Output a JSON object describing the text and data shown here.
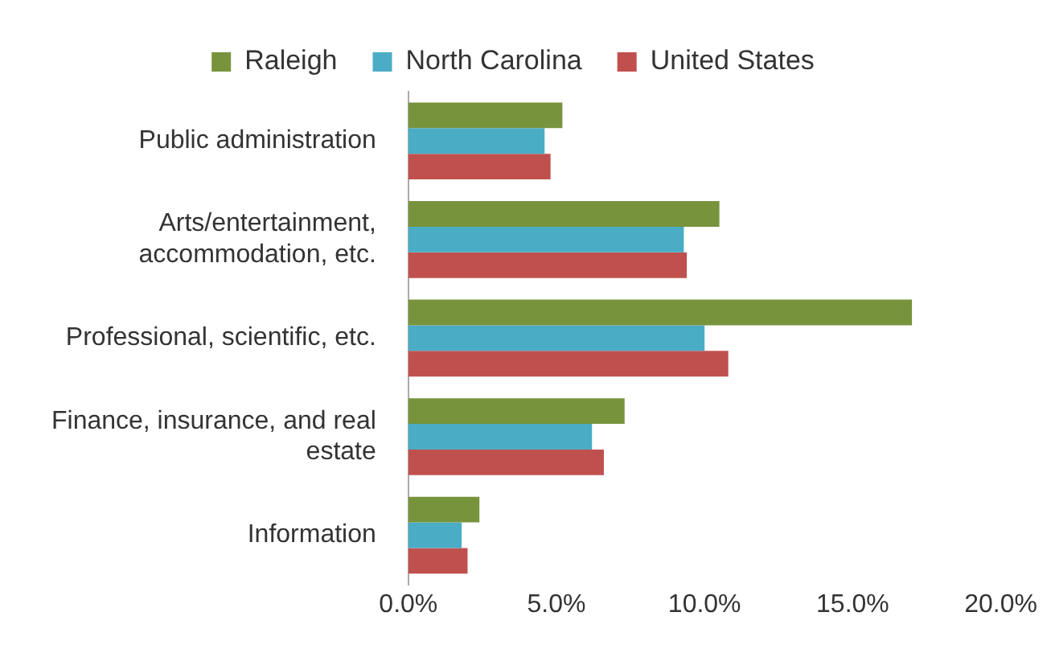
{
  "chart_data": {
    "type": "bar",
    "orientation": "horizontal",
    "categories": [
      "Public administration",
      "Arts/entertainment, accommodation, etc.",
      "Professional, scientific, etc.",
      "Finance, insurance, and real estate",
      "Information"
    ],
    "series": [
      {
        "name": "Raleigh",
        "color": "#77933c",
        "values": [
          5.2,
          10.5,
          17.0,
          7.3,
          2.4
        ]
      },
      {
        "name": "North Carolina",
        "color": "#4bacc6",
        "values": [
          4.6,
          9.3,
          10.0,
          6.2,
          1.8
        ]
      },
      {
        "name": "United States",
        "color": "#c0504d",
        "values": [
          4.8,
          9.4,
          10.8,
          6.6,
          2.0
        ]
      }
    ],
    "xlim": [
      0,
      20
    ],
    "xticks": [
      {
        "value": 0,
        "label": "0.0%"
      },
      {
        "value": 5,
        "label": "5.0%"
      },
      {
        "value": 10,
        "label": "10.0%"
      },
      {
        "value": 15,
        "label": "15.0%"
      },
      {
        "value": 20,
        "label": "20.0%"
      }
    ],
    "grid": false,
    "legend": "top"
  }
}
